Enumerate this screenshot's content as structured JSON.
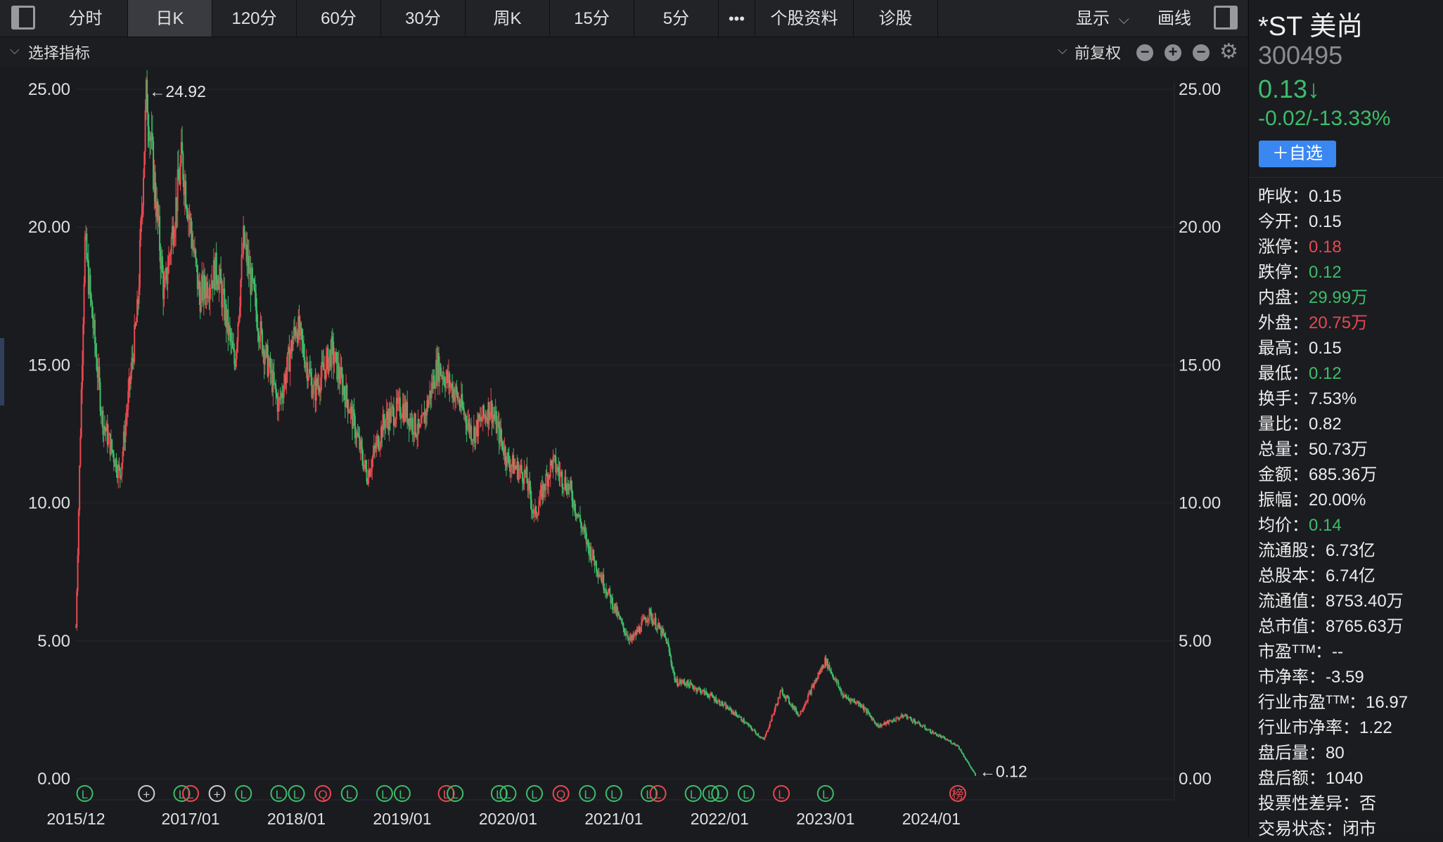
{
  "toolbar": {
    "tabs": [
      "分时",
      "日K",
      "120分",
      "60分",
      "30分",
      "周K",
      "15分",
      "5分"
    ],
    "active_tab": "日K",
    "more_label": "•••",
    "stock_info_label": "个股资料",
    "diagnose_label": "诊股",
    "display_label": "显示",
    "draw_label": "画线"
  },
  "indicator_bar": {
    "select_indicator_label": "选择指标",
    "adjust_label": "前复权"
  },
  "chart_data": {
    "type": "candlestick",
    "title": "",
    "x_ticks": [
      "2015/12",
      "2017/01",
      "2018/01",
      "2019/01",
      "2020/01",
      "2021/01",
      "2022/01",
      "2023/01",
      "2024/01"
    ],
    "y_ticks": [
      "0.00",
      "5.00",
      "10.00",
      "15.00",
      "20.00",
      "25.00"
    ],
    "ylim": [
      0,
      25
    ],
    "max_annotation": "←24.92",
    "min_annotation": "←0.12",
    "price_path": [
      {
        "date": "2015/12",
        "price": 5.5
      },
      {
        "date": "2016/01",
        "price": 19.5
      },
      {
        "date": "2016/03",
        "price": 13.0
      },
      {
        "date": "2016/05",
        "price": 11.0
      },
      {
        "date": "2016/07",
        "price": 17.0
      },
      {
        "date": "2016/08",
        "price": 24.92
      },
      {
        "date": "2016/10",
        "price": 17.5
      },
      {
        "date": "2016/12",
        "price": 22.5
      },
      {
        "date": "2017/02",
        "price": 17.5
      },
      {
        "date": "2017/04",
        "price": 18.5
      },
      {
        "date": "2017/06",
        "price": 15.0
      },
      {
        "date": "2017/07",
        "price": 19.5
      },
      {
        "date": "2017/09",
        "price": 16.0
      },
      {
        "date": "2017/11",
        "price": 13.5
      },
      {
        "date": "2018/01",
        "price": 16.5
      },
      {
        "date": "2018/03",
        "price": 14.0
      },
      {
        "date": "2018/05",
        "price": 15.5
      },
      {
        "date": "2018/07",
        "price": 13.5
      },
      {
        "date": "2018/09",
        "price": 11.0
      },
      {
        "date": "2018/11",
        "price": 13.0
      },
      {
        "date": "2019/01",
        "price": 13.5
      },
      {
        "date": "2019/03",
        "price": 12.5
      },
      {
        "date": "2019/05",
        "price": 15.0
      },
      {
        "date": "2019/07",
        "price": 14.0
      },
      {
        "date": "2019/09",
        "price": 12.5
      },
      {
        "date": "2019/11",
        "price": 13.5
      },
      {
        "date": "2020/01",
        "price": 11.5
      },
      {
        "date": "2020/03",
        "price": 11.0
      },
      {
        "date": "2020/04",
        "price": 9.5
      },
      {
        "date": "2020/06",
        "price": 11.5
      },
      {
        "date": "2020/08",
        "price": 10.5
      },
      {
        "date": "2020/10",
        "price": 8.5
      },
      {
        "date": "2020/12",
        "price": 7.0
      },
      {
        "date": "2021/02",
        "price": 5.5
      },
      {
        "date": "2021/03",
        "price": 5.0
      },
      {
        "date": "2021/05",
        "price": 6.0
      },
      {
        "date": "2021/07",
        "price": 5.0
      },
      {
        "date": "2021/08",
        "price": 3.5
      },
      {
        "date": "2021/09",
        "price": 3.5
      },
      {
        "date": "2021/12",
        "price": 3.0
      },
      {
        "date": "2022/03",
        "price": 2.3
      },
      {
        "date": "2022/06",
        "price": 1.4
      },
      {
        "date": "2022/08",
        "price": 3.2
      },
      {
        "date": "2022/10",
        "price": 2.3
      },
      {
        "date": "2023/01",
        "price": 4.3
      },
      {
        "date": "2023/03",
        "price": 3.0
      },
      {
        "date": "2023/05",
        "price": 2.7
      },
      {
        "date": "2023/07",
        "price": 1.9
      },
      {
        "date": "2023/10",
        "price": 2.3
      },
      {
        "date": "2024/01",
        "price": 1.7
      },
      {
        "date": "2024/04",
        "price": 1.2
      },
      {
        "date": "2024/06",
        "price": 0.12
      }
    ],
    "event_markers": [
      {
        "date": "2016/01",
        "symbol": "L",
        "color": "#3dbd6a"
      },
      {
        "date": "2016/08",
        "symbol": "+",
        "color": "#cfcfcf"
      },
      {
        "date": "2016/12",
        "symbol": "L",
        "color": "#3dbd6a"
      },
      {
        "date": "2017/01",
        "symbol": "L",
        "color": "#e9484f"
      },
      {
        "date": "2017/04",
        "symbol": "+",
        "color": "#cfcfcf"
      },
      {
        "date": "2017/07",
        "symbol": "L",
        "color": "#3dbd6a"
      },
      {
        "date": "2017/11",
        "symbol": "L",
        "color": "#3dbd6a"
      },
      {
        "date": "2018/01",
        "symbol": "L",
        "color": "#3dbd6a"
      },
      {
        "date": "2018/04",
        "symbol": "Q",
        "color": "#e9484f"
      },
      {
        "date": "2018/07",
        "symbol": "L",
        "color": "#3dbd6a"
      },
      {
        "date": "2018/11",
        "symbol": "L",
        "color": "#3dbd6a"
      },
      {
        "date": "2019/01",
        "symbol": "L",
        "color": "#3dbd6a"
      },
      {
        "date": "2019/06",
        "symbol": "L",
        "color": "#e9484f"
      },
      {
        "date": "2019/07",
        "symbol": "L",
        "color": "#3dbd6a"
      },
      {
        "date": "2019/12",
        "symbol": "L",
        "color": "#3dbd6a"
      },
      {
        "date": "2020/01",
        "symbol": "L",
        "color": "#3dbd6a"
      },
      {
        "date": "2020/04",
        "symbol": "L",
        "color": "#3dbd6a"
      },
      {
        "date": "2020/07",
        "symbol": "Q",
        "color": "#e9484f"
      },
      {
        "date": "2020/10",
        "symbol": "L",
        "color": "#3dbd6a"
      },
      {
        "date": "2021/01",
        "symbol": "L",
        "color": "#3dbd6a"
      },
      {
        "date": "2021/05",
        "symbol": "L",
        "color": "#3dbd6a"
      },
      {
        "date": "2021/06",
        "symbol": "L",
        "color": "#e9484f"
      },
      {
        "date": "2021/10",
        "symbol": "L",
        "color": "#3dbd6a"
      },
      {
        "date": "2021/12",
        "symbol": "L",
        "color": "#3dbd6a"
      },
      {
        "date": "2022/01",
        "symbol": "L",
        "color": "#3dbd6a"
      },
      {
        "date": "2022/04",
        "symbol": "L",
        "color": "#3dbd6a"
      },
      {
        "date": "2022/08",
        "symbol": "L",
        "color": "#e9484f"
      },
      {
        "date": "2023/01",
        "symbol": "L",
        "color": "#3dbd6a"
      },
      {
        "date": "2024/04",
        "symbol": "榜",
        "color": "#e9484f"
      }
    ],
    "up_color": "#e9484f",
    "down_color": "#3dbd6a",
    "grid": true
  },
  "stock": {
    "name": "*ST 美尚",
    "code": "300495",
    "price": "0.13↓",
    "change": "-0.02/-13.33%",
    "watch_label": "＋自选"
  },
  "stats": [
    {
      "label": "昨收：",
      "value": "0.15",
      "tone": ""
    },
    {
      "label": "今开：",
      "value": "0.15",
      "tone": ""
    },
    {
      "label": "涨停：",
      "value": "0.18",
      "tone": "up"
    },
    {
      "label": "跌停：",
      "value": "0.12",
      "tone": "down"
    },
    {
      "label": "内盘：",
      "value": "29.99万",
      "tone": "down"
    },
    {
      "label": "外盘：",
      "value": "20.75万",
      "tone": "up"
    },
    {
      "label": "最高：",
      "value": "0.15",
      "tone": ""
    },
    {
      "label": "最低：",
      "value": "0.12",
      "tone": "down"
    },
    {
      "label": "换手：",
      "value": "7.53%",
      "tone": ""
    },
    {
      "label": "量比：",
      "value": "0.82",
      "tone": ""
    },
    {
      "label": "总量：",
      "value": "50.73万",
      "tone": ""
    },
    {
      "label": "金额：",
      "value": "685.36万",
      "tone": ""
    },
    {
      "label": "振幅：",
      "value": "20.00%",
      "tone": ""
    },
    {
      "label": "均价：",
      "value": "0.14",
      "tone": "down"
    },
    {
      "label": "流通股：",
      "value": "6.73亿",
      "tone": ""
    },
    {
      "label": "总股本：",
      "value": "6.74亿",
      "tone": ""
    },
    {
      "label": "流通值：",
      "value": "8753.40万",
      "tone": ""
    },
    {
      "label": "总市值：",
      "value": "8765.63万",
      "tone": ""
    },
    {
      "label": "市盈ᵀᵀᴹ：",
      "value": "--",
      "tone": ""
    },
    {
      "label": "市净率：",
      "value": "-3.59",
      "tone": ""
    },
    {
      "label": "行业市盈ᵀᵀᴹ：",
      "value": "16.97",
      "tone": ""
    },
    {
      "label": "行业市净率：",
      "value": "1.22",
      "tone": ""
    },
    {
      "label": "盘后量：",
      "value": "80",
      "tone": ""
    },
    {
      "label": "盘后额：",
      "value": "1040",
      "tone": ""
    },
    {
      "label": "投票性差异：",
      "value": "否",
      "tone": ""
    },
    {
      "label": "交易状态：",
      "value": "闭市",
      "tone": ""
    }
  ]
}
